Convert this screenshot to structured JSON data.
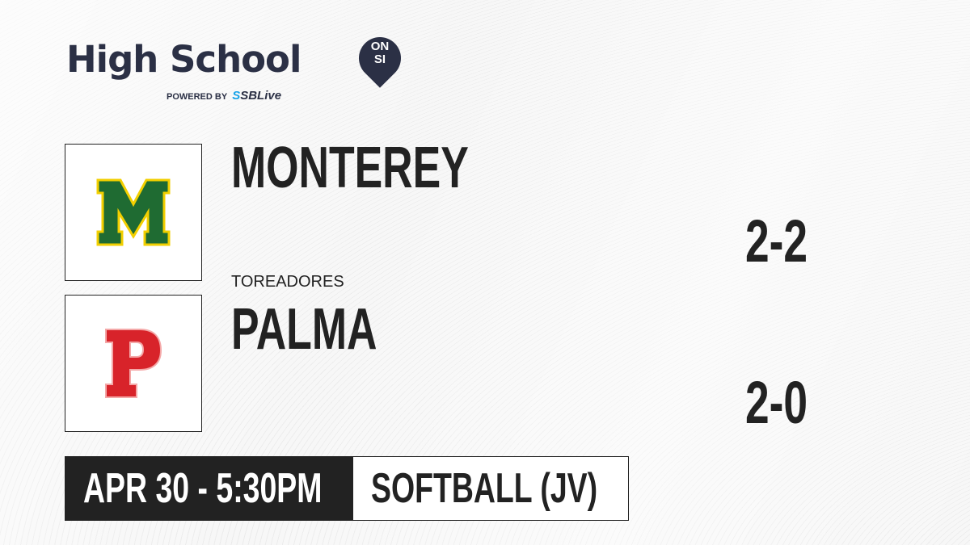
{
  "brand": {
    "title": "High School",
    "badge_top": "ON",
    "badge_bottom": "SI",
    "powered_by": "POWERED BY",
    "partner_prefix": "S",
    "partner": "SBLive",
    "colors": {
      "navy": "#2b3045",
      "partner_blue": "#1aa3e8"
    }
  },
  "teams": [
    {
      "name": "MONTEREY",
      "mascot": "",
      "logo_letter": "M",
      "logo_color": "#1f6b32",
      "logo_outline": "#f2cf00",
      "score": "2-2"
    },
    {
      "name": "PALMA",
      "mascot": "TOREADORES",
      "logo_letter": "P",
      "logo_color": "#d8232a",
      "logo_outline": "#f4a8a8",
      "score": "2-0"
    }
  ],
  "game": {
    "datetime": "APR 30 - 5:30PM",
    "sport": "SOFTBALL (JV)"
  }
}
